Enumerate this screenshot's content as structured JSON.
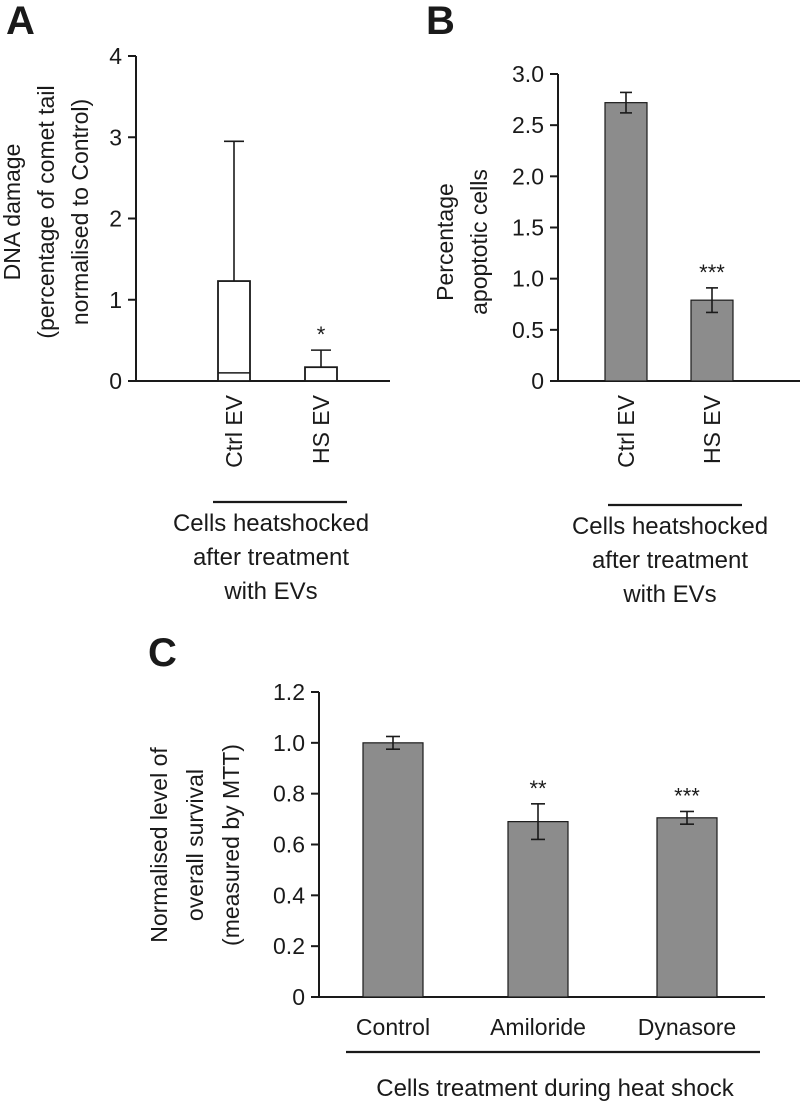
{
  "chart_data": [
    {
      "panel": "A",
      "type": "box",
      "ylabel": [
        "DNA damage",
        "(percentage of comet tail",
        "normalised to Control)"
      ],
      "ylim": [
        0,
        4
      ],
      "yticks": [
        "0",
        "1",
        "2",
        "3",
        "4"
      ],
      "categories": [
        "Ctrl EV",
        "HS EV"
      ],
      "boxes": [
        {
          "category": "Ctrl EV",
          "whisker_low": 0,
          "q1": 0,
          "median": 0.1,
          "q3": 1.23,
          "whisker_high": 2.95,
          "sig": ""
        },
        {
          "category": "HS EV",
          "whisker_low": 0,
          "q1": 0,
          "median": 0,
          "q3": 0.17,
          "whisker_high": 0.38,
          "sig": "*"
        }
      ],
      "group_label": [
        "Cells heatshocked",
        "after treatment",
        "with EVs"
      ]
    },
    {
      "panel": "B",
      "type": "bar",
      "ylabel": [
        "Percentage",
        "apoptotic cells"
      ],
      "ylim": [
        0,
        3.0
      ],
      "yticks": [
        "0",
        "0.5",
        "1.0",
        "1.5",
        "2.0",
        "2.5",
        "3.0"
      ],
      "categories": [
        "Ctrl EV",
        "HS EV"
      ],
      "values": [
        2.72,
        0.79
      ],
      "errors": [
        0.1,
        0.12
      ],
      "sig": [
        "",
        "***"
      ],
      "group_label": [
        "Cells heatshocked",
        "after treatment",
        "with EVs"
      ]
    },
    {
      "panel": "C",
      "type": "bar",
      "ylabel": [
        "Normalised level of",
        "overall survival",
        "(measured by MTT)"
      ],
      "ylim": [
        0,
        1.2
      ],
      "yticks": [
        "0",
        "0.2",
        "0.4",
        "0.6",
        "0.8",
        "1.0",
        "1.2"
      ],
      "categories": [
        "Control",
        "Amiloride",
        "Dynasore"
      ],
      "values": [
        1.0,
        0.69,
        0.705
      ],
      "errors": [
        0.025,
        0.07,
        0.025
      ],
      "sig": [
        "",
        "**",
        "***"
      ],
      "group_label": [
        "Cells treatment during heat shock"
      ]
    }
  ]
}
